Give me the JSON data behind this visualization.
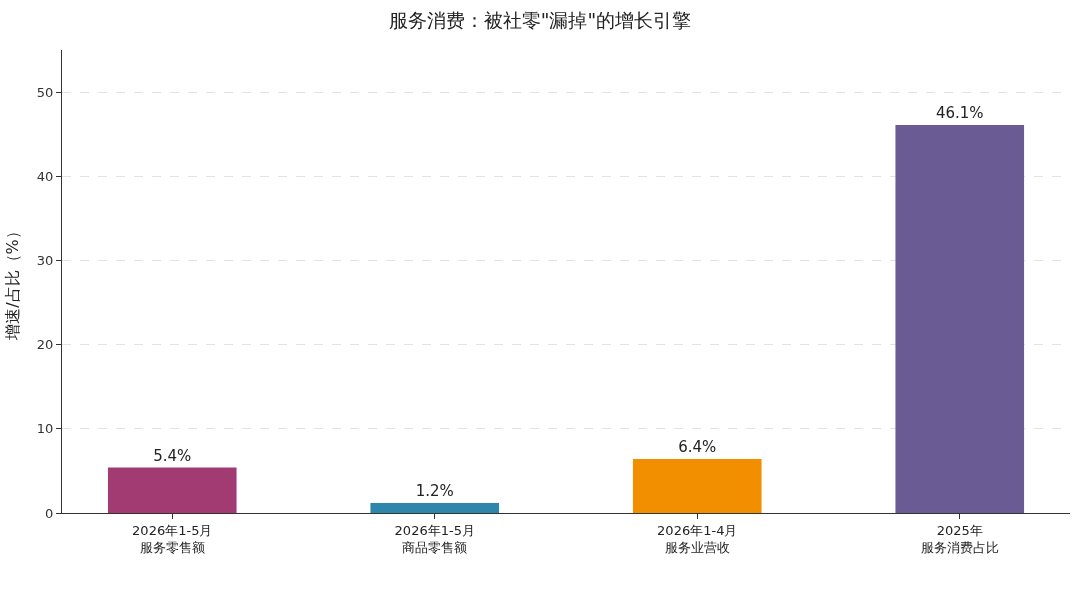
{
  "chart_data": {
    "type": "bar",
    "title": "服务消费：被社零\"漏掉\"的增长引擎",
    "ylabel": "增速/占比（%）",
    "categories": [
      "2026年1-5月服务零售额",
      "2026年1-5月商品零售额",
      "2026年1-4月服务业营收",
      "2025年服务消费占比"
    ],
    "values": [
      5.4,
      1.2,
      6.4,
      46.1
    ],
    "colors": [
      "#a23b72",
      "#2e86ab",
      "#f18f01",
      "#6b5b95"
    ],
    "value_labels": [
      "5.4%",
      "1.2%",
      "6.4%",
      "46.1%"
    ],
    "ylim": [
      0,
      55
    ],
    "yticks": [
      0,
      10,
      20,
      30,
      40,
      50
    ],
    "grid": "y"
  }
}
